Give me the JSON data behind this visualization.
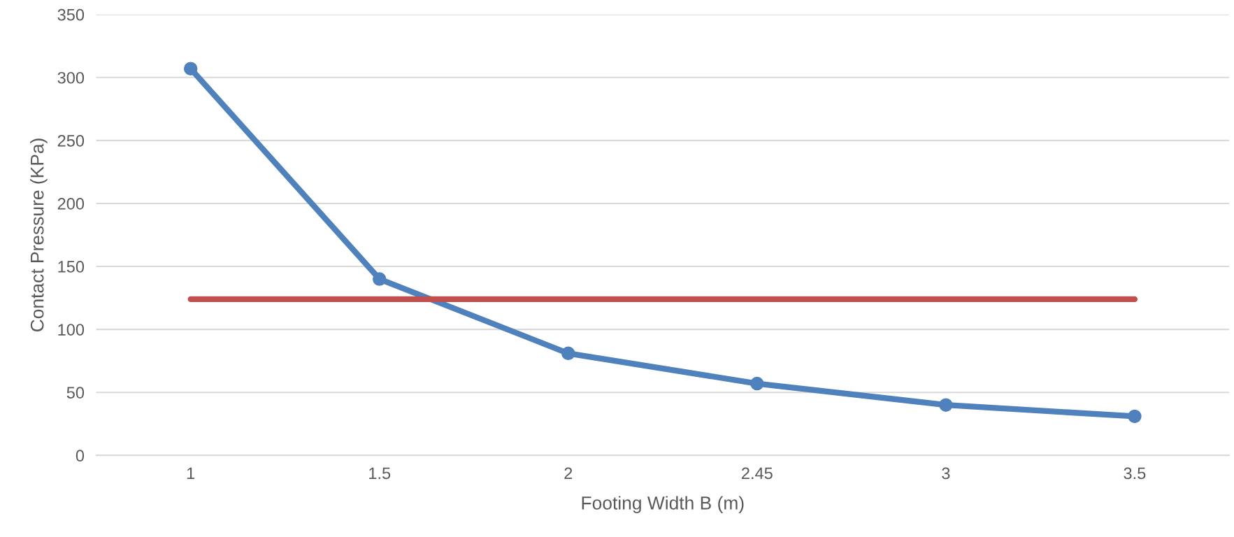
{
  "chart_data": {
    "type": "line",
    "xlabel": "Footing Width B (m)",
    "ylabel": "Contact Pressure (KPa)",
    "categories": [
      "1",
      "1.5",
      "2",
      "2.45",
      "3",
      "3.5"
    ],
    "series": [
      {
        "color": "#4f81bd",
        "values": [
          307,
          140,
          81,
          57,
          40,
          31
        ],
        "marker": "circle"
      },
      {
        "color": "#c0504d",
        "values": [
          124,
          124,
          124,
          124,
          124,
          124
        ],
        "marker": "none"
      }
    ],
    "ylim": [
      0,
      350
    ],
    "yticks": [
      0,
      50,
      100,
      150,
      200,
      250,
      300,
      350
    ],
    "grid": "y",
    "legend": false
  }
}
